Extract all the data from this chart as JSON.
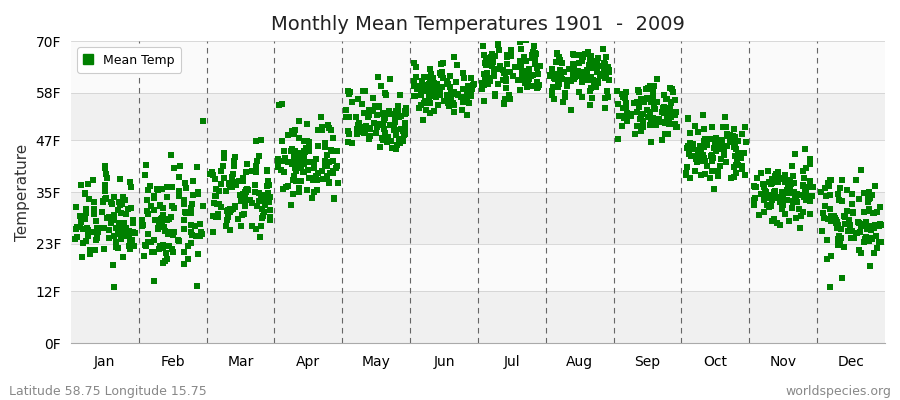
{
  "title": "Monthly Mean Temperatures 1901  -  2009",
  "ylabel": "Temperature",
  "yticks": [
    0,
    12,
    23,
    35,
    47,
    58,
    70
  ],
  "ytick_labels": [
    "0F",
    "12F",
    "23F",
    "35F",
    "47F",
    "58F",
    "70F"
  ],
  "months": [
    "Jan",
    "Feb",
    "Mar",
    "Apr",
    "May",
    "Jun",
    "Jul",
    "Aug",
    "Sep",
    "Oct",
    "Nov",
    "Dec"
  ],
  "month_means_f": [
    28,
    28,
    34,
    42,
    52,
    59,
    63,
    62,
    54,
    44,
    35,
    29
  ],
  "month_stds_f": [
    5,
    6,
    5,
    5,
    4,
    3,
    3,
    3,
    3,
    4,
    4,
    5
  ],
  "n_years": 109,
  "marker_color": "#008000",
  "marker_size": 4,
  "background_color": "#ffffff",
  "plot_bg": "#f0f0f0",
  "band_light": "#f0f0f0",
  "band_white": "#fafafa",
  "legend_label": "Mean Temp",
  "footer_left": "Latitude 58.75 Longitude 15.75",
  "footer_right": "worldspecies.org",
  "ylim": [
    0,
    70
  ],
  "xlim": [
    0,
    12
  ],
  "title_fontsize": 14,
  "axis_fontsize": 10,
  "footer_fontsize": 9
}
